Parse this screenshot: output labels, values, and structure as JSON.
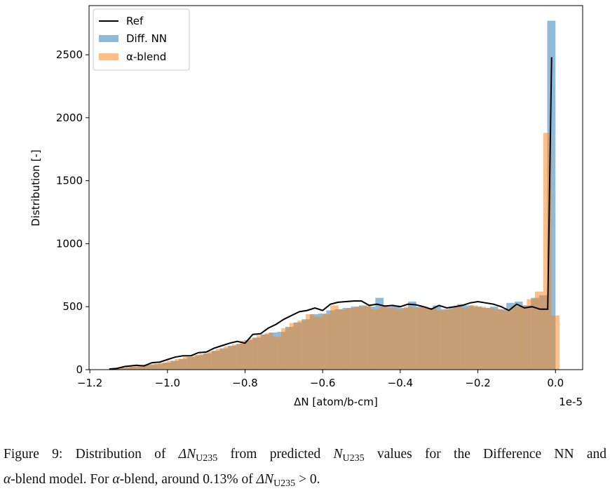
{
  "chart_data": {
    "type": "histogram",
    "xlabel": "ΔN [atom/b-cm]",
    "ylabel": "Distribution [-]",
    "x_offset_label": "1e-5",
    "xlim": [
      -1.202,
      0.07
    ],
    "ylim": [
      0,
      2890
    ],
    "xticks": [
      {
        "value": -1.2,
        "label": "−1.2"
      },
      {
        "value": -1.0,
        "label": "−1.0"
      },
      {
        "value": -0.8,
        "label": "−0.8"
      },
      {
        "value": -0.6,
        "label": "−0.6"
      },
      {
        "value": -0.4,
        "label": "−0.4"
      },
      {
        "value": -0.2,
        "label": "−0.2"
      },
      {
        "value": 0.0,
        "label": "0.0"
      }
    ],
    "yticks": [
      0,
      500,
      1000,
      1500,
      2000,
      2500
    ],
    "legend": "upper left",
    "series": [
      {
        "name": "Diff. NN",
        "color": "#1f77b4",
        "opacity": 0.5,
        "bins": [
          -1.1394,
          -1.1183,
          -1.0972,
          -1.0761,
          -1.055,
          -1.0339,
          -1.0128,
          -0.9917,
          -0.9706,
          -0.9495,
          -0.9284,
          -0.9073,
          -0.8862,
          -0.8651,
          -0.844,
          -0.8229,
          -0.8018,
          -0.7807,
          -0.7596,
          -0.7385,
          -0.7174,
          -0.6963,
          -0.6752,
          -0.6541,
          -0.633,
          -0.6119,
          -0.5908,
          -0.5697,
          -0.5486,
          -0.5275,
          -0.5064,
          -0.4853,
          -0.4642,
          -0.4431,
          -0.422,
          -0.4009,
          -0.3798,
          -0.3587,
          -0.3376,
          -0.3165,
          -0.2954,
          -0.2743,
          -0.2532,
          -0.2321,
          -0.211,
          -0.1899,
          -0.1688,
          -0.1477,
          -0.1266,
          -0.1055,
          -0.0844,
          -0.0633,
          -0.0422,
          -0.0211,
          0.0
        ],
        "values": [
          5,
          15,
          22,
          30,
          38,
          45,
          55,
          70,
          85,
          100,
          115,
          130,
          150,
          170,
          190,
          205,
          235,
          255,
          280,
          295,
          300,
          340,
          375,
          400,
          440,
          445,
          470,
          480,
          490,
          500,
          510,
          500,
          570,
          500,
          510,
          490,
          540,
          500,
          490,
          510,
          480,
          500,
          520,
          510,
          500,
          490,
          500,
          480,
          530,
          540,
          510,
          570,
          590,
          2770
        ]
      },
      {
        "name": "α-blend",
        "color": "#ff7f0e",
        "opacity": 0.5,
        "bins": [
          -1.15,
          -1.1289,
          -1.1078,
          -1.0867,
          -1.0656,
          -1.0445,
          -1.0234,
          -1.0023,
          -0.9812,
          -0.9601,
          -0.939,
          -0.9179,
          -0.8968,
          -0.8757,
          -0.8546,
          -0.8335,
          -0.8124,
          -0.7913,
          -0.7702,
          -0.7491,
          -0.728,
          -0.7069,
          -0.6858,
          -0.6647,
          -0.6436,
          -0.6225,
          -0.6014,
          -0.5803,
          -0.5592,
          -0.5381,
          -0.517,
          -0.4959,
          -0.4748,
          -0.4537,
          -0.4326,
          -0.4115,
          -0.3904,
          -0.3693,
          -0.3482,
          -0.3271,
          -0.306,
          -0.2849,
          -0.2638,
          -0.2427,
          -0.2216,
          -0.2005,
          -0.1794,
          -0.1583,
          -0.1372,
          -0.1161,
          -0.095,
          -0.0739,
          -0.0528,
          -0.0317,
          -0.0106,
          0.0105
        ],
        "values": [
          5,
          15,
          25,
          30,
          40,
          45,
          55,
          70,
          85,
          100,
          115,
          125,
          145,
          165,
          185,
          200,
          230,
          250,
          275,
          290,
          260,
          330,
          370,
          390,
          440,
          420,
          440,
          510,
          480,
          490,
          500,
          505,
          480,
          500,
          490,
          480,
          500,
          490,
          500,
          490,
          470,
          480,
          500,
          490,
          510,
          500,
          490,
          480,
          470,
          500,
          510,
          560,
          620,
          1880,
          430
        ]
      }
    ],
    "line": {
      "name": "Ref",
      "color": "#000000",
      "x": [
        -1.15,
        -1.13,
        -1.11,
        -1.08,
        -1.06,
        -1.04,
        -1.02,
        -1.0,
        -0.98,
        -0.96,
        -0.94,
        -0.92,
        -0.9,
        -0.88,
        -0.86,
        -0.84,
        -0.82,
        -0.8,
        -0.78,
        -0.76,
        -0.74,
        -0.72,
        -0.7,
        -0.68,
        -0.66,
        -0.64,
        -0.62,
        -0.6,
        -0.58,
        -0.56,
        -0.54,
        -0.52,
        -0.5,
        -0.48,
        -0.46,
        -0.44,
        -0.42,
        -0.4,
        -0.38,
        -0.36,
        -0.34,
        -0.32,
        -0.3,
        -0.28,
        -0.26,
        -0.24,
        -0.22,
        -0.2,
        -0.18,
        -0.16,
        -0.14,
        -0.12,
        -0.1,
        -0.08,
        -0.06,
        -0.04,
        -0.02,
        -0.01
      ],
      "values": [
        5,
        10,
        25,
        35,
        30,
        55,
        60,
        80,
        100,
        110,
        110,
        135,
        140,
        170,
        190,
        210,
        225,
        210,
        280,
        285,
        330,
        360,
        400,
        430,
        460,
        470,
        490,
        470,
        520,
        535,
        540,
        545,
        545,
        510,
        520,
        505,
        510,
        500,
        520,
        515,
        500,
        480,
        510,
        490,
        500,
        510,
        530,
        540,
        530,
        520,
        500,
        470,
        520,
        490,
        500,
        480,
        480,
        2480
      ]
    }
  },
  "caption": [
    "Figure 9: Distribution of ",
    "ΔN",
    "U235",
    " from predicted ",
    "N",
    "U235",
    " values for the Difference NN and",
    "α",
    "-blend model. For ",
    "α",
    "-blend, around 0.13% of ",
    "ΔN",
    "U235",
    " > 0."
  ]
}
